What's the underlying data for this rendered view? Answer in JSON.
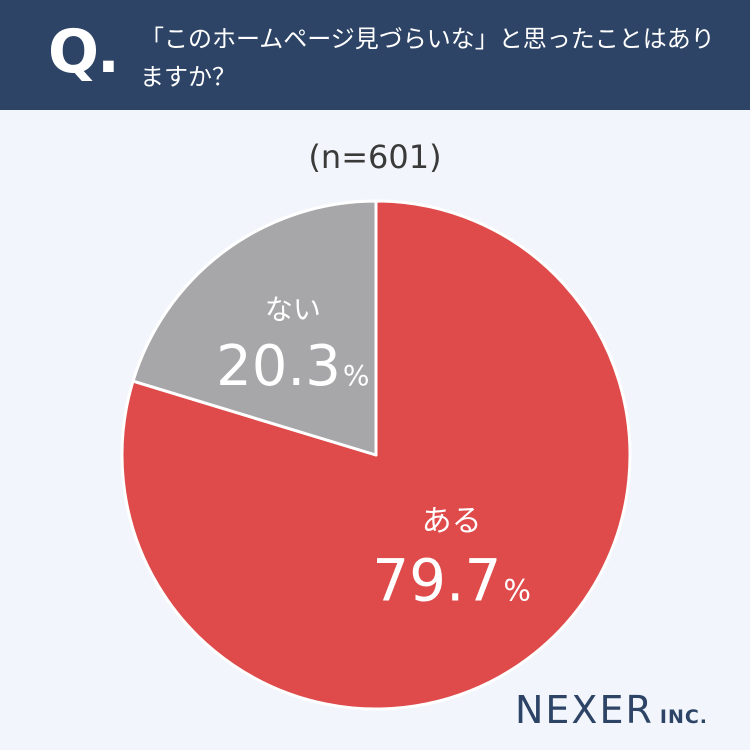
{
  "header": {
    "q_mark": "Q.",
    "question": "「このホームページ見づらいな」と思ったことはありますか？",
    "background": "#2d4466"
  },
  "sample_size": "(n=601)",
  "brand": {
    "name": "NEXER",
    "suffix": "INC."
  },
  "chart_data": {
    "type": "pie",
    "categories": [
      "ある",
      "ない"
    ],
    "values": [
      79.7,
      20.3
    ],
    "unit": "%",
    "colors": [
      "#df4b4b",
      "#a7a6a8"
    ],
    "start": "12 o'clock, clockwise"
  }
}
